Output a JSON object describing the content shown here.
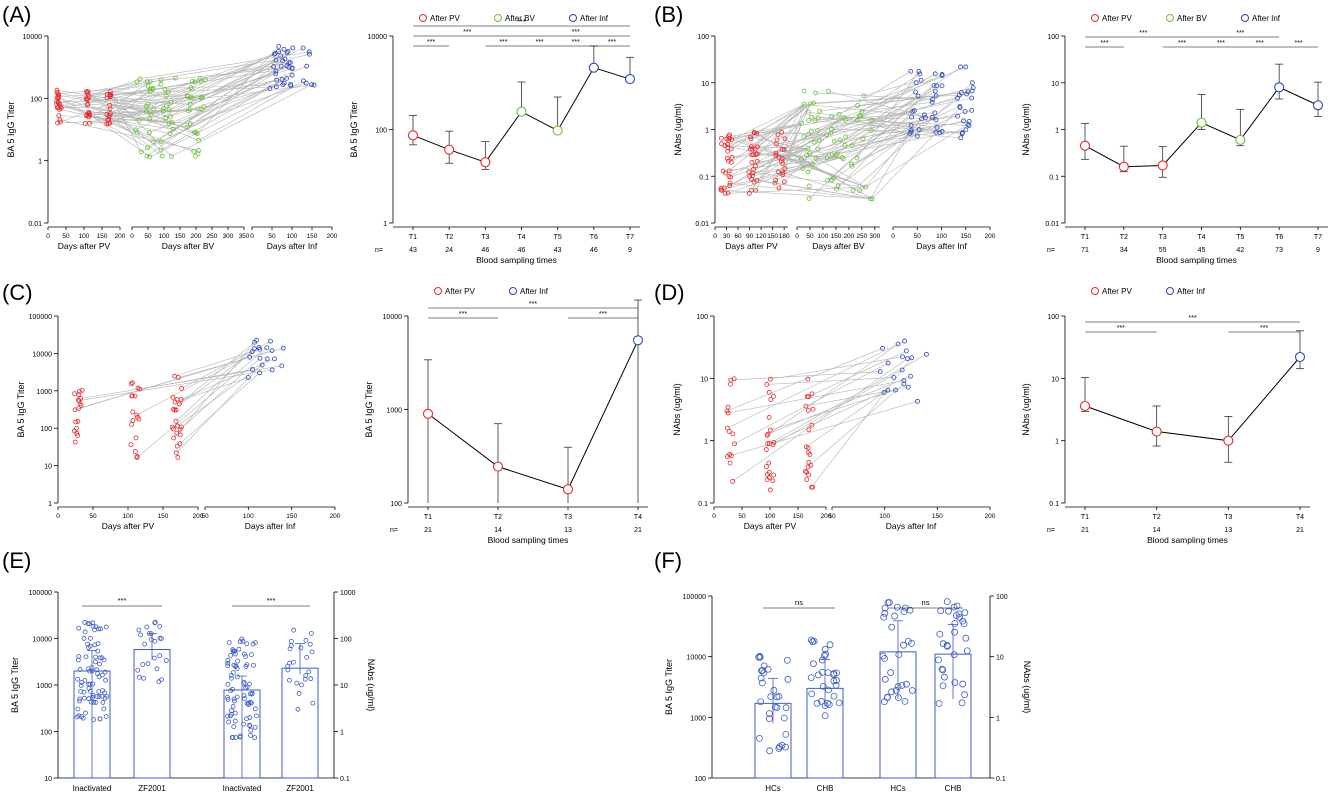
{
  "panel_letters": {
    "A": "(A)",
    "B": "(B)",
    "C": "(C)",
    "D": "(D)",
    "E": "(E)",
    "F": "(F)"
  },
  "colors": {
    "pv": "#e8292b",
    "bv": "#6cbf3b",
    "inf": "#2b46b8",
    "line": "#b5b5b5",
    "bar": "#3f5cc4",
    "black": "#000000"
  },
  "chart_data": [
    {
      "id": "A-left",
      "type": "scatter",
      "ylabel": "BA 5 IgG Titer",
      "yscale": "log",
      "ylim": [
        0.01,
        10000
      ],
      "yticks": [
        "0.01",
        "1",
        "100",
        "10000"
      ],
      "segments": [
        {
          "xlabel": "Days after PV",
          "xticks": [
            "0",
            "50",
            "100",
            "150",
            "200"
          ],
          "xlim": [
            0,
            200
          ],
          "color": "pv"
        },
        {
          "xlabel": "Days after BV",
          "xticks": [
            "0",
            "50",
            "100",
            "150",
            "200",
            "250",
            "300",
            "350"
          ],
          "xlim": [
            0,
            350
          ],
          "color": "bv"
        },
        {
          "xlabel": "Days after Inf",
          "xticks": [
            "0",
            "50",
            "100",
            "150",
            "200"
          ],
          "xlim": [
            0,
            200
          ],
          "color": "inf"
        }
      ]
    },
    {
      "id": "A-right",
      "type": "line",
      "ylabel": "BA 5 IgG Titer",
      "xlabel": "Blood sampling times",
      "yscale": "log",
      "ylim": [
        1,
        10000
      ],
      "yticks": [
        "1",
        "100",
        "10000"
      ],
      "legend": [
        {
          "label": "After PV",
          "color": "pv"
        },
        {
          "label": "After BV",
          "color": "bv"
        },
        {
          "label": "After Inf",
          "color": "inf"
        }
      ],
      "categories": [
        "T1",
        "T2",
        "T3",
        "T4",
        "T5",
        "T6",
        "T7"
      ],
      "n_label": "n=",
      "n": [
        "43",
        "24",
        "46",
        "46",
        "43",
        "46",
        "9"
      ],
      "values": [
        75,
        37,
        20,
        240,
        95,
        2100,
        1200
      ],
      "err_low": [
        28,
        18,
        6,
        0,
        0,
        0,
        14
      ],
      "err_high": [
        125,
        55,
        35,
        800,
        400,
        4000,
        2300
      ],
      "point_colors": [
        "pv",
        "pv",
        "pv",
        "bv",
        "bv",
        "inf",
        "inf"
      ],
      "sig": [
        {
          "from": "T1",
          "to": "T7",
          "label": "***"
        },
        {
          "from": "T1",
          "to": "T4",
          "label": "***"
        },
        {
          "from": "T4",
          "to": "T7",
          "label": "***"
        },
        {
          "from": "T1",
          "to": "T2",
          "label": "***"
        },
        {
          "from": "T3",
          "to": "T4",
          "label": "***"
        },
        {
          "from": "T4",
          "to": "T5",
          "label": "***"
        },
        {
          "from": "T5",
          "to": "T6",
          "label": "***"
        },
        {
          "from": "T6",
          "to": "T7",
          "label": "***"
        }
      ]
    },
    {
      "id": "B-left",
      "type": "scatter",
      "ylabel": "NAbs (ug/ml)",
      "yscale": "log",
      "ylim": [
        0.01,
        100
      ],
      "yticks": [
        "0.01",
        "0.1",
        "1",
        "10",
        "100"
      ],
      "segments": [
        {
          "xlabel": "Days after PV",
          "xticks": [
            "0",
            "30",
            "60",
            "90",
            "120",
            "150",
            "180"
          ],
          "xlim": [
            0,
            190
          ],
          "color": "pv"
        },
        {
          "xlabel": "Days after BV",
          "xticks": [
            "0",
            "50",
            "100",
            "150",
            "200",
            "250",
            "300"
          ],
          "xlim": [
            0,
            320
          ],
          "color": "bv"
        },
        {
          "xlabel": "Days after Inf",
          "xticks": [
            "0",
            "50",
            "100",
            "150",
            "200"
          ],
          "xlim": [
            0,
            200
          ],
          "color": "inf"
        }
      ]
    },
    {
      "id": "B-right",
      "type": "line",
      "ylabel": "NAbs (ug/ml)",
      "xlabel": "Blood sampling times",
      "yscale": "log",
      "ylim": [
        0.01,
        100
      ],
      "yticks": [
        "0.01",
        "0.1",
        "1",
        "10",
        "100"
      ],
      "legend": [
        {
          "label": "After PV",
          "color": "pv"
        },
        {
          "label": "After BV",
          "color": "bv"
        },
        {
          "label": "After Inf",
          "color": "inf"
        }
      ],
      "categories": [
        "T1",
        "T2",
        "T3",
        "T4",
        "T5",
        "T6",
        "T7"
      ],
      "n_label": "n=",
      "n": [
        "71",
        "34",
        "55",
        "45",
        "42",
        "73",
        "9"
      ],
      "values": [
        0.45,
        0.16,
        0.17,
        1.4,
        0.6,
        8,
        3.3
      ],
      "err_low": [
        0.22,
        0.035,
        0.075,
        0.4,
        0.15,
        3.5,
        1.4
      ],
      "err_high": [
        0.9,
        0.28,
        0.26,
        4.2,
        2.1,
        17,
        7
      ],
      "point_colors": [
        "pv",
        "pv",
        "pv",
        "bv",
        "bv",
        "inf",
        "inf"
      ],
      "sig": [
        {
          "from": "T1",
          "to": "T4",
          "label": "***"
        },
        {
          "from": "T4",
          "to": "T6",
          "label": "***"
        },
        {
          "from": "T1",
          "to": "T2",
          "label": "***"
        },
        {
          "from": "T3",
          "to": "T4",
          "label": "***"
        },
        {
          "from": "T4",
          "to": "T5",
          "label": "***"
        },
        {
          "from": "T5",
          "to": "T6",
          "label": "***"
        },
        {
          "from": "T6",
          "to": "T7",
          "label": "***"
        }
      ]
    },
    {
      "id": "C-left",
      "type": "scatter",
      "ylabel": "BA 5 IgG Titer",
      "yscale": "log",
      "ylim": [
        1,
        100000
      ],
      "yticks": [
        "1",
        "10",
        "100",
        "1000",
        "10000",
        "100000"
      ],
      "segments": [
        {
          "xlabel": "Days after PV",
          "xticks": [
            "0",
            "50",
            "100",
            "150",
            "200"
          ],
          "xlim": [
            0,
            200
          ],
          "color": "pv"
        },
        {
          "xlabel": "Days after Inf",
          "xticks": [
            "50",
            "100",
            "150",
            "200"
          ],
          "xlim": [
            50,
            200
          ],
          "color": "inf"
        }
      ]
    },
    {
      "id": "C-right",
      "type": "line",
      "ylabel": "BA 5 IgG Titer",
      "xlabel": "Blood sampling times",
      "yscale": "log",
      "ylim": [
        100,
        10000
      ],
      "yticks": [
        "100",
        "1000",
        "10000"
      ],
      "legend": [
        {
          "label": "After PV",
          "color": "pv"
        },
        {
          "label": "After Inf",
          "color": "inf"
        }
      ],
      "categories": [
        "T1",
        "T2",
        "T3",
        "T4"
      ],
      "n_label": "n=",
      "n": [
        "21",
        "14",
        "13",
        "21"
      ],
      "values": [
        900,
        245,
        140,
        5500
      ],
      "err_low": [
        900,
        245,
        140,
        5500
      ],
      "err_high": [
        2500,
        460,
        255,
        9300
      ],
      "point_colors": [
        "pv",
        "pv",
        "pv",
        "inf"
      ],
      "sig": [
        {
          "from": "T1",
          "to": "T4",
          "label": "***"
        },
        {
          "from": "T1",
          "to": "T2",
          "label": "***"
        },
        {
          "from": "T3",
          "to": "T4",
          "label": "***"
        }
      ]
    },
    {
      "id": "D-left",
      "type": "scatter",
      "ylabel": "NAbs (ug/ml)",
      "yscale": "log",
      "ylim": [
        0.1,
        100
      ],
      "yticks": [
        "0.1",
        "1",
        "10",
        "100"
      ],
      "segments": [
        {
          "xlabel": "Days after PV",
          "xticks": [
            "0",
            "50",
            "100",
            "150",
            "200"
          ],
          "xlim": [
            0,
            200
          ],
          "color": "pv"
        },
        {
          "xlabel": "Days after Inf",
          "xticks": [
            "50",
            "100",
            "150",
            "200"
          ],
          "xlim": [
            50,
            200
          ],
          "color": "inf"
        }
      ]
    },
    {
      "id": "D-right",
      "type": "line",
      "ylabel": "NAbs (ug/ml)",
      "xlabel": "Blood sampling times",
      "yscale": "log",
      "ylim": [
        0.1,
        100
      ],
      "yticks": [
        "0.1",
        "1",
        "10",
        "100"
      ],
      "legend": [
        {
          "label": "After PV",
          "color": "pv"
        },
        {
          "label": "After Inf",
          "color": "inf"
        }
      ],
      "categories": [
        "T1",
        "T2",
        "T3",
        "T4"
      ],
      "n_label": "n=",
      "n": [
        "21",
        "14",
        "13",
        "21"
      ],
      "values": [
        3.6,
        1.4,
        1.0,
        22
      ],
      "err_low": [
        0.65,
        0.58,
        0.55,
        7.7
      ],
      "err_high": [
        6.7,
        2.2,
        1.45,
        36
      ],
      "point_colors": [
        "pv",
        "pv",
        "pv",
        "inf"
      ],
      "sig": [
        {
          "from": "T1",
          "to": "T4",
          "label": "***"
        },
        {
          "from": "T1",
          "to": "T2",
          "label": "***"
        },
        {
          "from": "T3",
          "to": "T4",
          "label": "***"
        }
      ]
    },
    {
      "id": "E",
      "type": "bar",
      "ylabel": "BA 5 IgG Titer",
      "y2label": "NAbs (ug/ml)",
      "yscale": "log",
      "ylim": [
        10,
        100000
      ],
      "yticks": [
        "10",
        "100",
        "1000",
        "10000",
        "100000"
      ],
      "y2lim": [
        0.1,
        1000
      ],
      "y2ticks": [
        "0.1",
        "1",
        "10",
        "100",
        "1000"
      ],
      "categories": [
        "Inactivated",
        "ZF2001",
        "Inactivated",
        "ZF2001"
      ],
      "axis": [
        "left",
        "left",
        "right",
        "right"
      ],
      "values": [
        2000,
        5800,
        7.8,
        23
      ],
      "err_low": [
        2000,
        2300,
        7.8,
        6
      ],
      "err_high": [
        3500,
        7000,
        7.8,
        55
      ],
      "sig": [
        {
          "from": 0,
          "to": 1,
          "label": "***"
        },
        {
          "from": 2,
          "to": 3,
          "label": "***"
        }
      ]
    },
    {
      "id": "F",
      "type": "bar",
      "ylabel": "BA 5 IgG Titer",
      "y2label": "NAbs (ug/ml)",
      "yscale": "log",
      "ylim": [
        100,
        100000
      ],
      "yticks": [
        "100",
        "1000",
        "10000",
        "100000"
      ],
      "y2lim": [
        0.1,
        100
      ],
      "y2ticks": [
        "0.1",
        "1",
        "10",
        "100"
      ],
      "categories": [
        "HCs",
        "CHB",
        "HCs",
        "CHB"
      ],
      "axis": [
        "left",
        "left",
        "right",
        "right"
      ],
      "values": [
        1700,
        3000,
        12,
        11
      ],
      "err_low": [
        900,
        1500,
        10,
        9
      ],
      "err_high": [
        2700,
        6000,
        27,
        23
      ],
      "sig": [
        {
          "from": 0,
          "to": 1,
          "label": "ns"
        },
        {
          "from": 2,
          "to": 3,
          "label": "ns"
        }
      ]
    }
  ]
}
